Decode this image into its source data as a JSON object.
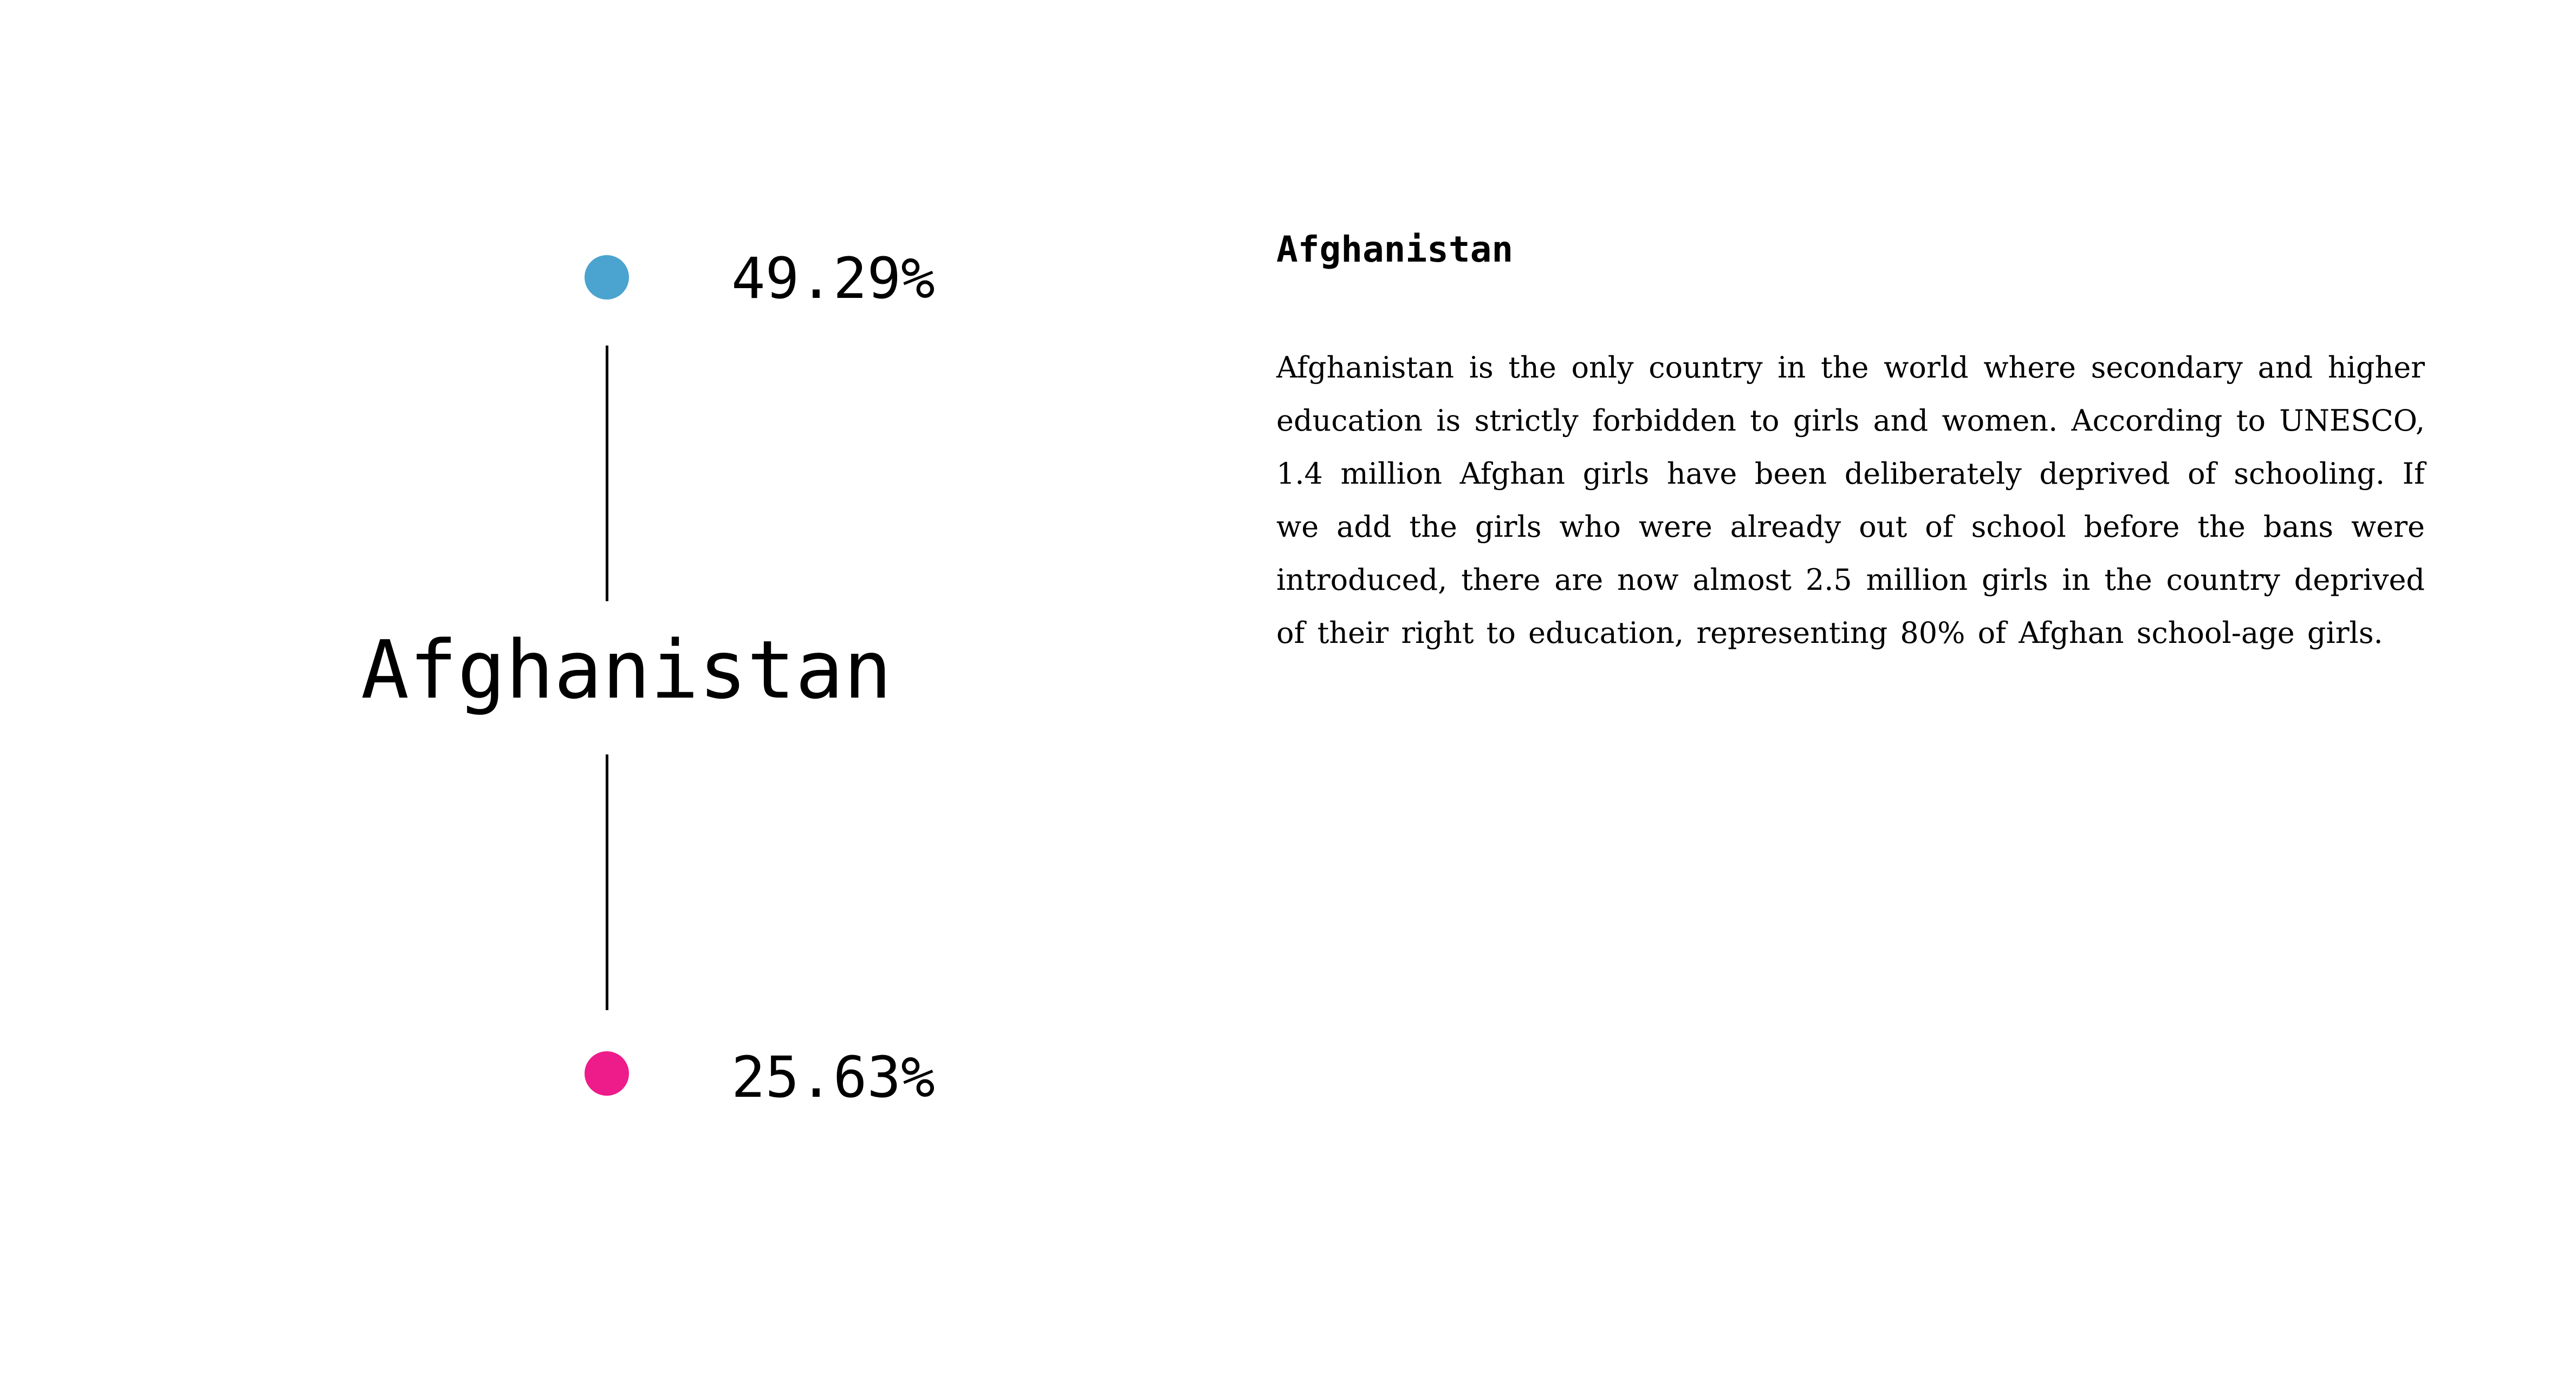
{
  "figure": {
    "country": "Afghanistan",
    "top_value": "49.29%",
    "bottom_value": "25.63%",
    "colors": {
      "top_dot": "#4ba3cf",
      "bottom_dot": "#ee1b8a",
      "connector": "#000000"
    }
  },
  "article": {
    "title": "Afghanistan",
    "body": "Afghanistan is the only country in the world where secondary and higher education is strictly forbidden to girls and women. According to UNESCO, 1.4 million Afghan girls have been deliberately deprived of schooling. If we add the girls who were already out of school before the bans were introduced, there are now almost 2.5 million girls in the country deprived of their right to education, representing 80% of Afghan school-age girls."
  }
}
